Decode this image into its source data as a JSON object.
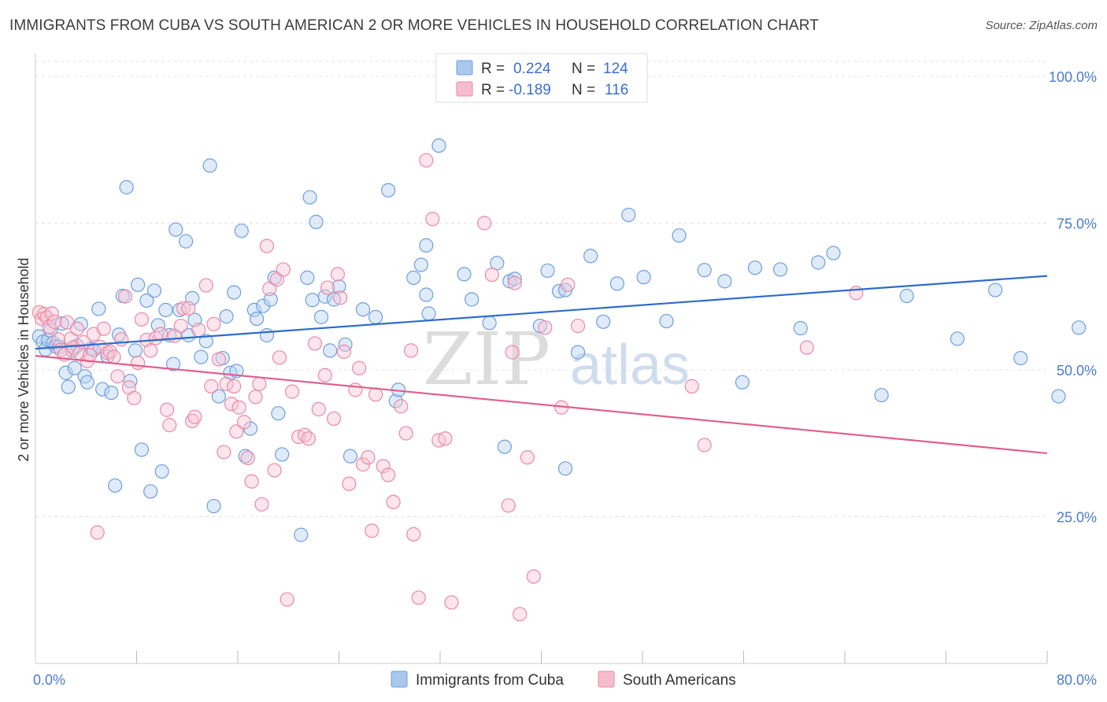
{
  "header": {
    "title": "IMMIGRANTS FROM CUBA VS SOUTH AMERICAN 2 OR MORE VEHICLES IN HOUSEHOLD CORRELATION CHART",
    "source": "Source: ZipAtlas.com"
  },
  "watermark": {
    "zip": "ZIP",
    "atlas": "atlas"
  },
  "legend": {
    "rows": [
      {
        "r_label": "R =",
        "r_value": "0.224",
        "n_label": "N =",
        "n_value": "124",
        "color": "#aac8ee",
        "stroke": "#6f9fdc"
      },
      {
        "r_label": "R =",
        "r_value": "-0.189",
        "n_label": "N =",
        "n_value": "116",
        "color": "#f6bccd",
        "stroke": "#e88aa8"
      }
    ]
  },
  "chart_data": {
    "type": "scatter",
    "title": "IMMIGRANTS FROM CUBA VS SOUTH AMERICAN 2 OR MORE VEHICLES IN HOUSEHOLD CORRELATION CHART",
    "xlabel": "",
    "ylabel": "2 or more Vehicles in Household",
    "xlim": [
      0,
      80
    ],
    "ylim": [
      0,
      102
    ],
    "x_tick_labels": [
      {
        "value": 0,
        "label": "0.0%"
      },
      {
        "value": 80,
        "label": "80.0%"
      }
    ],
    "x_minor_ticks": [
      8,
      16,
      24,
      32,
      40,
      48,
      56,
      64,
      72,
      80
    ],
    "y_ticks": [
      {
        "value": 25,
        "label": "25.0%"
      },
      {
        "value": 50,
        "label": "50.0%"
      },
      {
        "value": 75,
        "label": "75.0%"
      },
      {
        "value": 100,
        "label": "100.0%"
      }
    ],
    "grid": true,
    "legend_position": "top-center",
    "series": [
      {
        "name": "Immigrants from Cuba",
        "color": "#6f9fdc",
        "fill": "#b9d3f2",
        "trend": {
          "x": [
            0,
            80
          ],
          "y": [
            53.6,
            66.0
          ],
          "color": "#2e6cc9"
        },
        "points": [
          [
            0.3,
            55.7
          ],
          [
            0.6,
            54.8
          ],
          [
            0.8,
            53.5
          ],
          [
            1.0,
            55.1
          ],
          [
            1.2,
            56.7
          ],
          [
            1.4,
            54.6
          ],
          [
            1.6,
            54.0
          ],
          [
            1.9,
            53.9
          ],
          [
            2.1,
            57.9
          ],
          [
            2.4,
            49.5
          ],
          [
            2.6,
            47.1
          ],
          [
            2.9,
            53.3
          ],
          [
            3.1,
            50.3
          ],
          [
            3.3,
            54.1
          ],
          [
            3.6,
            57.8
          ],
          [
            3.9,
            48.9
          ],
          [
            4.1,
            47.9
          ],
          [
            4.4,
            53.6
          ],
          [
            4.6,
            53.4
          ],
          [
            5.0,
            60.4
          ],
          [
            5.3,
            46.7
          ],
          [
            5.7,
            52.3
          ],
          [
            6.0,
            46.1
          ],
          [
            6.3,
            30.3
          ],
          [
            6.6,
            56.0
          ],
          [
            6.9,
            62.6
          ],
          [
            7.2,
            81.1
          ],
          [
            7.5,
            48.1
          ],
          [
            7.9,
            53.3
          ],
          [
            8.1,
            64.5
          ],
          [
            8.4,
            36.4
          ],
          [
            8.8,
            61.8
          ],
          [
            9.1,
            29.3
          ],
          [
            9.4,
            63.5
          ],
          [
            9.7,
            57.6
          ],
          [
            10.0,
            32.7
          ],
          [
            10.3,
            60.2
          ],
          [
            10.6,
            55.9
          ],
          [
            10.9,
            51.0
          ],
          [
            11.1,
            73.9
          ],
          [
            11.4,
            60.2
          ],
          [
            11.9,
            71.9
          ],
          [
            12.1,
            55.9
          ],
          [
            12.4,
            62.2
          ],
          [
            12.6,
            58.5
          ],
          [
            13.1,
            52.2
          ],
          [
            13.5,
            54.9
          ],
          [
            13.8,
            84.8
          ],
          [
            14.1,
            26.8
          ],
          [
            14.5,
            45.5
          ],
          [
            14.8,
            52.0
          ],
          [
            15.1,
            59.1
          ],
          [
            15.4,
            49.5
          ],
          [
            15.7,
            63.2
          ],
          [
            15.9,
            49.8
          ],
          [
            16.3,
            73.7
          ],
          [
            16.6,
            35.3
          ],
          [
            17.0,
            40.0
          ],
          [
            17.3,
            60.2
          ],
          [
            17.5,
            58.7
          ],
          [
            18.0,
            60.9
          ],
          [
            18.3,
            55.9
          ],
          [
            18.6,
            62.0
          ],
          [
            18.9,
            65.7
          ],
          [
            19.2,
            42.6
          ],
          [
            19.5,
            35.6
          ],
          [
            21.0,
            21.9
          ],
          [
            21.5,
            65.7
          ],
          [
            21.7,
            79.4
          ],
          [
            21.9,
            61.9
          ],
          [
            22.2,
            75.2
          ],
          [
            22.6,
            59.0
          ],
          [
            22.9,
            62.5
          ],
          [
            23.3,
            53.3
          ],
          [
            23.6,
            62.0
          ],
          [
            24.0,
            64.2
          ],
          [
            24.5,
            54.3
          ],
          [
            24.9,
            35.3
          ],
          [
            25.9,
            60.3
          ],
          [
            26.9,
            59.0
          ],
          [
            27.9,
            80.6
          ],
          [
            28.5,
            44.7
          ],
          [
            28.7,
            46.6
          ],
          [
            29.9,
            65.7
          ],
          [
            30.5,
            67.9
          ],
          [
            30.9,
            71.2
          ],
          [
            30.9,
            62.8
          ],
          [
            31.1,
            59.6
          ],
          [
            31.9,
            88.2
          ],
          [
            33.9,
            66.3
          ],
          [
            34.5,
            62.0
          ],
          [
            35.9,
            58.0
          ],
          [
            36.5,
            68.2
          ],
          [
            37.5,
            65.1
          ],
          [
            37.9,
            65.5
          ],
          [
            37.1,
            36.9
          ],
          [
            39.9,
            57.5
          ],
          [
            40.5,
            66.9
          ],
          [
            41.4,
            63.4
          ],
          [
            41.9,
            63.6
          ],
          [
            41.9,
            33.2
          ],
          [
            42.9,
            53.0
          ],
          [
            43.9,
            69.4
          ],
          [
            44.9,
            58.2
          ],
          [
            46.0,
            64.7
          ],
          [
            46.9,
            76.4
          ],
          [
            48.1,
            65.8
          ],
          [
            49.9,
            58.3
          ],
          [
            50.9,
            72.9
          ],
          [
            52.9,
            67.0
          ],
          [
            54.5,
            65.1
          ],
          [
            55.9,
            47.9
          ],
          [
            56.9,
            67.4
          ],
          [
            58.9,
            67.1
          ],
          [
            60.5,
            57.1
          ],
          [
            61.9,
            68.3
          ],
          [
            63.1,
            69.9
          ],
          [
            66.9,
            45.7
          ],
          [
            68.9,
            62.6
          ],
          [
            72.9,
            55.3
          ],
          [
            75.9,
            63.6
          ],
          [
            77.9,
            52.0
          ],
          [
            80.9,
            45.5
          ],
          [
            82.5,
            57.2
          ]
        ]
      },
      {
        "name": "South Americans",
        "color": "#e88aa8",
        "fill": "#f8c5d5",
        "trend": {
          "x": [
            0,
            80
          ],
          "y": [
            52.4,
            35.8
          ],
          "color": "#e05f8f"
        },
        "points": [
          [
            0.3,
            59.8
          ],
          [
            0.5,
            58.7
          ],
          [
            0.7,
            59.5
          ],
          [
            0.9,
            58.9
          ],
          [
            1.1,
            57.3
          ],
          [
            1.3,
            59.6
          ],
          [
            1.5,
            58.2
          ],
          [
            1.8,
            55.2
          ],
          [
            2.0,
            53.4
          ],
          [
            2.3,
            52.6
          ],
          [
            2.5,
            58.1
          ],
          [
            2.8,
            55.3
          ],
          [
            3.0,
            53.8
          ],
          [
            3.3,
            57.0
          ],
          [
            3.5,
            52.9
          ],
          [
            3.8,
            54.7
          ],
          [
            4.1,
            51.5
          ],
          [
            4.3,
            52.5
          ],
          [
            4.6,
            56.1
          ],
          [
            4.9,
            22.3
          ],
          [
            5.1,
            53.9
          ],
          [
            5.4,
            57.0
          ],
          [
            5.7,
            52.9
          ],
          [
            5.9,
            53.1
          ],
          [
            6.2,
            52.2
          ],
          [
            6.5,
            48.9
          ],
          [
            6.8,
            55.2
          ],
          [
            7.1,
            62.5
          ],
          [
            7.4,
            47.0
          ],
          [
            7.8,
            45.2
          ],
          [
            8.1,
            51.2
          ],
          [
            8.4,
            58.6
          ],
          [
            8.8,
            55.1
          ],
          [
            9.1,
            53.3
          ],
          [
            9.5,
            55.4
          ],
          [
            9.9,
            56.1
          ],
          [
            10.4,
            43.2
          ],
          [
            10.6,
            40.6
          ],
          [
            11.0,
            55.8
          ],
          [
            11.5,
            57.5
          ],
          [
            11.7,
            60.5
          ],
          [
            12.1,
            60.5
          ],
          [
            12.4,
            41.3
          ],
          [
            12.6,
            42.0
          ],
          [
            12.9,
            56.8
          ],
          [
            13.5,
            64.4
          ],
          [
            13.9,
            47.2
          ],
          [
            14.1,
            57.8
          ],
          [
            14.5,
            51.8
          ],
          [
            14.9,
            36.0
          ],
          [
            15.1,
            47.6
          ],
          [
            15.5,
            44.2
          ],
          [
            15.7,
            47.2
          ],
          [
            15.9,
            39.5
          ],
          [
            16.1,
            43.6
          ],
          [
            16.5,
            41.1
          ],
          [
            16.8,
            35.0
          ],
          [
            17.1,
            31.0
          ],
          [
            17.4,
            45.4
          ],
          [
            17.7,
            47.6
          ],
          [
            17.9,
            27.1
          ],
          [
            18.3,
            71.1
          ],
          [
            18.5,
            63.8
          ],
          [
            18.9,
            32.9
          ],
          [
            19.1,
            65.4
          ],
          [
            19.3,
            52.1
          ],
          [
            19.6,
            67.1
          ],
          [
            19.9,
            10.9
          ],
          [
            20.3,
            46.3
          ],
          [
            20.8,
            38.6
          ],
          [
            21.3,
            38.9
          ],
          [
            21.6,
            38.3
          ],
          [
            22.1,
            54.5
          ],
          [
            22.4,
            43.3
          ],
          [
            22.9,
            49.1
          ],
          [
            23.1,
            64.0
          ],
          [
            23.6,
            41.7
          ],
          [
            23.9,
            66.3
          ],
          [
            24.1,
            62.3
          ],
          [
            24.4,
            53.1
          ],
          [
            24.8,
            30.6
          ],
          [
            25.3,
            46.6
          ],
          [
            25.6,
            50.3
          ],
          [
            25.9,
            33.9
          ],
          [
            26.3,
            35.1
          ],
          [
            26.6,
            22.6
          ],
          [
            26.9,
            45.8
          ],
          [
            27.5,
            33.6
          ],
          [
            27.9,
            32.1
          ],
          [
            28.3,
            27.5
          ],
          [
            28.9,
            43.8
          ],
          [
            29.3,
            39.2
          ],
          [
            29.7,
            53.3
          ],
          [
            29.9,
            22.0
          ],
          [
            30.3,
            11.2
          ],
          [
            30.9,
            85.7
          ],
          [
            31.4,
            75.7
          ],
          [
            31.9,
            38.0
          ],
          [
            32.4,
            38.3
          ],
          [
            32.9,
            10.4
          ],
          [
            35.5,
            75.0
          ],
          [
            36.1,
            66.2
          ],
          [
            37.4,
            26.9
          ],
          [
            37.7,
            53.0
          ],
          [
            37.9,
            64.8
          ],
          [
            38.3,
            8.4
          ],
          [
            38.9,
            35.1
          ],
          [
            39.4,
            14.8
          ],
          [
            40.3,
            57.2
          ],
          [
            41.6,
            43.6
          ],
          [
            42.1,
            64.5
          ],
          [
            42.9,
            57.5
          ],
          [
            51.9,
            47.2
          ],
          [
            52.9,
            37.2
          ],
          [
            61.0,
            53.8
          ],
          [
            64.9,
            63.1
          ]
        ]
      }
    ]
  }
}
